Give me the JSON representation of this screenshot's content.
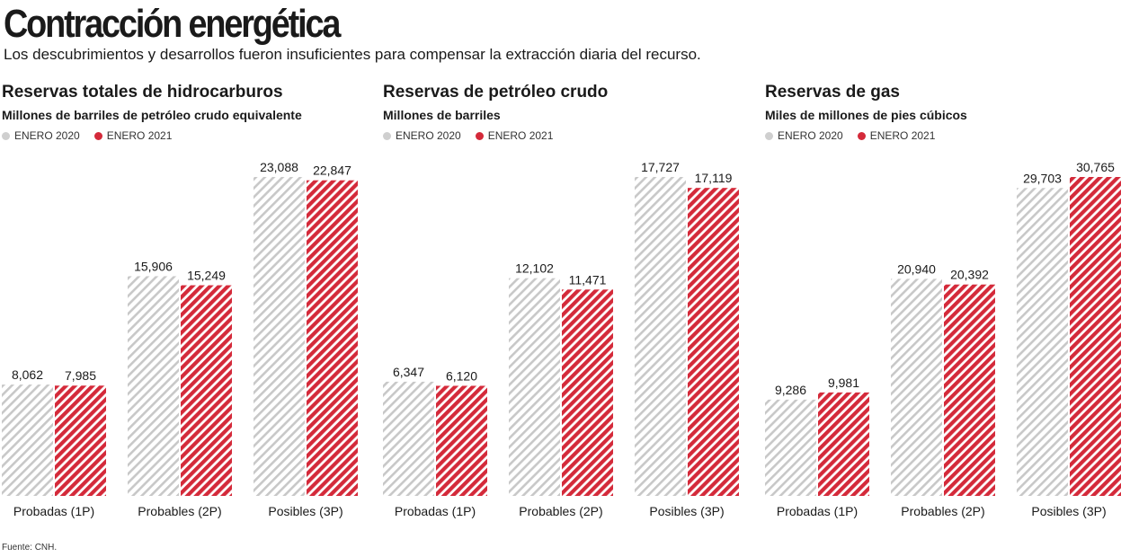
{
  "header": {
    "title": "Contracción energética",
    "subtitle": "Los descubrimientos y desarrollos fueron insuficientes para compensar la extracción diaria del recurso."
  },
  "colors": {
    "enero2020": "#c8c8c8",
    "enero2021": "#d42a3a"
  },
  "chart_data": [
    {
      "type": "bar",
      "title": "Reservas totales de hidrocarburos",
      "ylabel": "Millones de barriles de petróleo crudo equivalente",
      "legend": [
        "ENERO 2020",
        "ENERO 2021"
      ],
      "categories": [
        "Probadas (1P)",
        "Probables (2P)",
        "Posibles (3P)"
      ],
      "series": [
        {
          "name": "ENERO 2020",
          "values": [
            8062,
            15906,
            23088
          ],
          "labels": [
            "8,062",
            "15,906",
            "23,088"
          ]
        },
        {
          "name": "ENERO 2021",
          "values": [
            7985,
            15249,
            22847
          ],
          "labels": [
            "7,985",
            "15,249",
            "22,847"
          ]
        }
      ],
      "ylim": [
        0,
        23088
      ]
    },
    {
      "type": "bar",
      "title": "Reservas de petróleo crudo",
      "ylabel": "Millones de barriles",
      "legend": [
        "ENERO 2020",
        "ENERO 2021"
      ],
      "categories": [
        "Probadas (1P)",
        "Probables (2P)",
        "Posibles (3P)"
      ],
      "series": [
        {
          "name": "ENERO 2020",
          "values": [
            6347,
            12102,
            17727
          ],
          "labels": [
            "6,347",
            "12,102",
            "17,727"
          ]
        },
        {
          "name": "ENERO 2021",
          "values": [
            6120,
            11471,
            17119
          ],
          "labels": [
            "6,120",
            "11,471",
            "17,119"
          ]
        }
      ],
      "ylim": [
        0,
        17727
      ]
    },
    {
      "type": "bar",
      "title": "Reservas de gas",
      "ylabel": "Miles de millones de pies cúbicos",
      "legend": [
        "ENERO 2020",
        "ENERO 2021"
      ],
      "categories": [
        "Probadas (1P)",
        "Probables (2P)",
        "Posibles (3P)"
      ],
      "series": [
        {
          "name": "ENERO 2020",
          "values": [
            9286,
            20940,
            29703
          ],
          "labels": [
            "9,286",
            "20,940",
            "29,703"
          ]
        },
        {
          "name": "ENERO 2021",
          "values": [
            9981,
            20392,
            30765
          ],
          "labels": [
            "9,981",
            "20,392",
            "30,765"
          ]
        }
      ],
      "ylim": [
        0,
        30765
      ]
    }
  ],
  "footer": {
    "source": "Fuente: CNH."
  }
}
